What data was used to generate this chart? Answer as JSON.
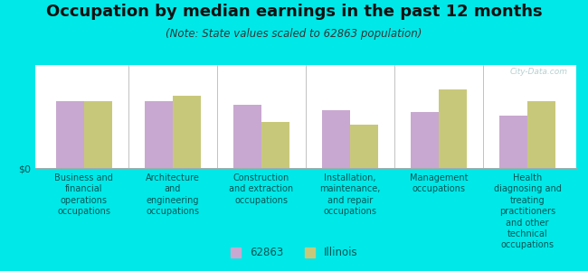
{
  "title": "Occupation by median earnings in the past 12 months",
  "subtitle": "(Note: State values scaled to 62863 population)",
  "watermark": "City-Data.com",
  "categories": [
    "Business and\nfinancial\noperations\noccupations",
    "Architecture\nand\nengineering\noccupations",
    "Construction\nand extraction\noccupations",
    "Installation,\nmaintenance,\nand repair\noccupations",
    "Management\noccupations",
    "Health\ndiagnosing and\ntreating\npractitioners\nand other\ntechnical\noccupations"
  ],
  "values_62863": [
    0.55,
    0.55,
    0.52,
    0.48,
    0.46,
    0.43
  ],
  "values_illinois": [
    0.55,
    0.6,
    0.38,
    0.36,
    0.65,
    0.55
  ],
  "color_62863": "#c8a8d0",
  "color_illinois": "#c8c87a",
  "outer_background": "#00e8e8",
  "chart_bg_top": "#f2f7e8",
  "chart_bg_bottom": "#e4edd4",
  "ylabel": "$0",
  "bar_width": 0.32,
  "legend_label_62863": "62863",
  "legend_label_illinois": "Illinois",
  "title_fontsize": 13,
  "subtitle_fontsize": 8.5,
  "tick_fontsize": 7,
  "legend_fontsize": 8.5,
  "axis_text_color": "#005555",
  "title_color": "#111111"
}
